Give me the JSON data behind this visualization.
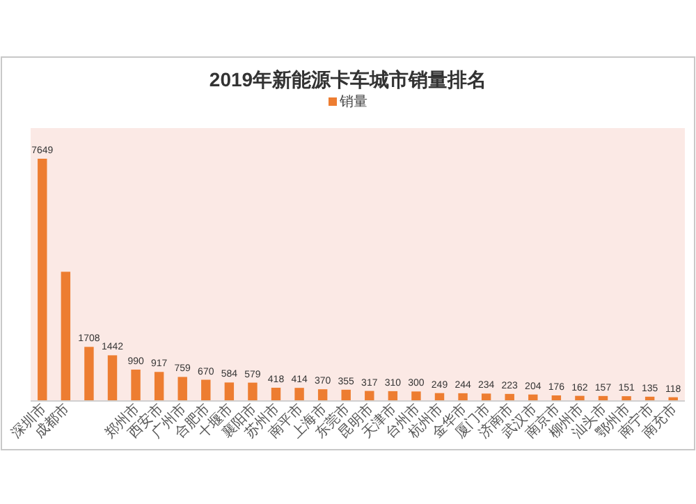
{
  "chart_data": {
    "type": "bar",
    "title": "2019年新能源卡车城市销量排名",
    "legend": "top",
    "categories": [
      "深圳市",
      "成都市",
      null,
      null,
      "郑州市",
      "西安市",
      "广州市",
      "合肥市",
      "十堰市",
      "襄阳市",
      "苏州市",
      "南平市",
      "上海市",
      "东莞市",
      "昆明市",
      "天津市",
      "台州市",
      "杭州市",
      "金华市",
      "厦门市",
      "济南市",
      "武汉市",
      "南京市",
      "柳州市",
      "汕头市",
      "鄂州市",
      "南宁市",
      "南充市"
    ],
    "series": [
      {
        "name": "销量",
        "color": "#ed7d31",
        "values": [
          7649,
          4080,
          1708,
          1442,
          990,
          917,
          759,
          670,
          584,
          579,
          418,
          414,
          370,
          355,
          317,
          310,
          300,
          249,
          244,
          234,
          223,
          204,
          176,
          162,
          157,
          151,
          135,
          118
        ],
        "value_labels": [
          "7649",
          null,
          "1708",
          "1442",
          "990",
          "917",
          "759",
          "670",
          "584",
          "579",
          "418",
          "414",
          "370",
          "355",
          "317",
          "310",
          "300",
          "249",
          "244",
          "234",
          "223",
          "204",
          "176",
          "162",
          "157",
          "151",
          "135",
          "118"
        ]
      }
    ]
  }
}
